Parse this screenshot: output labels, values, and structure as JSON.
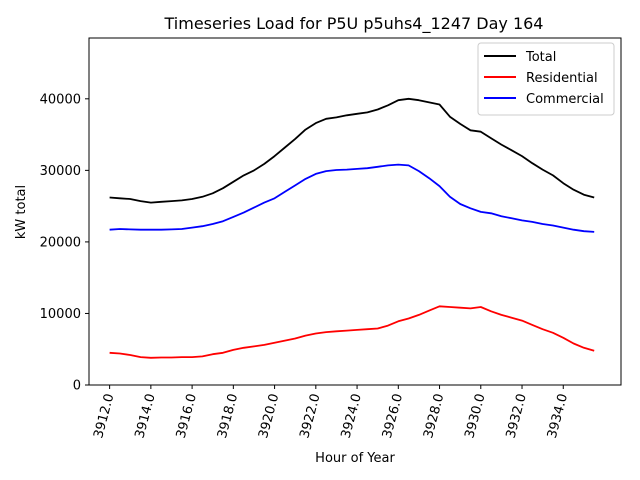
{
  "chart_data": {
    "type": "line",
    "title": "Timeseries Load for P5U p5uhs4_1247  Day 164",
    "xlabel": "Hour of Year",
    "ylabel": "kW total",
    "xlim": [
      3911.0,
      3936.8
    ],
    "ylim": [
      0,
      48500
    ],
    "x_ticks": [
      3912,
      3914,
      3916,
      3918,
      3920,
      3922,
      3924,
      3926,
      3928,
      3930,
      3932,
      3934
    ],
    "x_tick_labels": [
      "3912.0",
      "3914.0",
      "3916.0",
      "3918.0",
      "3920.0",
      "3922.0",
      "3924.0",
      "3926.0",
      "3928.0",
      "3930.0",
      "3932.0",
      "3934.0"
    ],
    "y_ticks": [
      0,
      10000,
      20000,
      30000,
      40000
    ],
    "y_tick_labels": [
      "0",
      "10000",
      "20000",
      "30000",
      "40000"
    ],
    "grid": false,
    "legend_position": "top-right",
    "x": [
      3912.0,
      3912.5,
      3913.0,
      3913.5,
      3914.0,
      3914.5,
      3915.0,
      3915.5,
      3916.0,
      3916.5,
      3917.0,
      3917.5,
      3918.0,
      3918.5,
      3919.0,
      3919.5,
      3920.0,
      3920.5,
      3921.0,
      3921.5,
      3922.0,
      3922.5,
      3923.0,
      3923.5,
      3924.0,
      3924.5,
      3925.0,
      3925.5,
      3926.0,
      3926.5,
      3927.0,
      3927.5,
      3928.0,
      3928.5,
      3929.0,
      3929.5,
      3930.0,
      3930.5,
      3931.0,
      3931.5,
      3932.0,
      3932.5,
      3933.0,
      3933.5,
      3934.0,
      3934.5,
      3935.0,
      3935.5
    ],
    "series": [
      {
        "name": "Total",
        "color": "#000000",
        "values": [
          26200,
          26100,
          26000,
          25700,
          25500,
          25600,
          25700,
          25800,
          26000,
          26300,
          26800,
          27500,
          28400,
          29300,
          30000,
          30900,
          32000,
          33200,
          34400,
          35700,
          36600,
          37200,
          37400,
          37700,
          37900,
          38100,
          38500,
          39100,
          39800,
          40000,
          39800,
          39500,
          39200,
          37500,
          36500,
          35600,
          35400,
          34500,
          33600,
          32800,
          32000,
          31000,
          30100,
          29300,
          28200,
          27300,
          26600,
          26200
        ]
      },
      {
        "name": "Residential",
        "color": "#ff0000",
        "values": [
          4500,
          4400,
          4200,
          3900,
          3800,
          3850,
          3850,
          3900,
          3900,
          4000,
          4300,
          4500,
          4900,
          5200,
          5400,
          5600,
          5900,
          6200,
          6500,
          6900,
          7200,
          7400,
          7500,
          7600,
          7700,
          7800,
          7900,
          8300,
          8900,
          9300,
          9800,
          10400,
          11000,
          10900,
          10800,
          10700,
          10900,
          10300,
          9800,
          9400,
          9000,
          8400,
          7800,
          7300,
          6600,
          5800,
          5200,
          4800
        ]
      },
      {
        "name": "Commercial",
        "color": "#0000ff",
        "values": [
          21700,
          21800,
          21750,
          21700,
          21700,
          21700,
          21750,
          21800,
          22000,
          22200,
          22500,
          22900,
          23500,
          24100,
          24800,
          25500,
          26100,
          27000,
          27900,
          28800,
          29500,
          29900,
          30050,
          30100,
          30200,
          30300,
          30500,
          30700,
          30800,
          30700,
          29900,
          28900,
          27800,
          26300,
          25300,
          24700,
          24200,
          24000,
          23600,
          23300,
          23000,
          22800,
          22500,
          22300,
          22000,
          21700,
          21500,
          21400
        ]
      }
    ]
  }
}
